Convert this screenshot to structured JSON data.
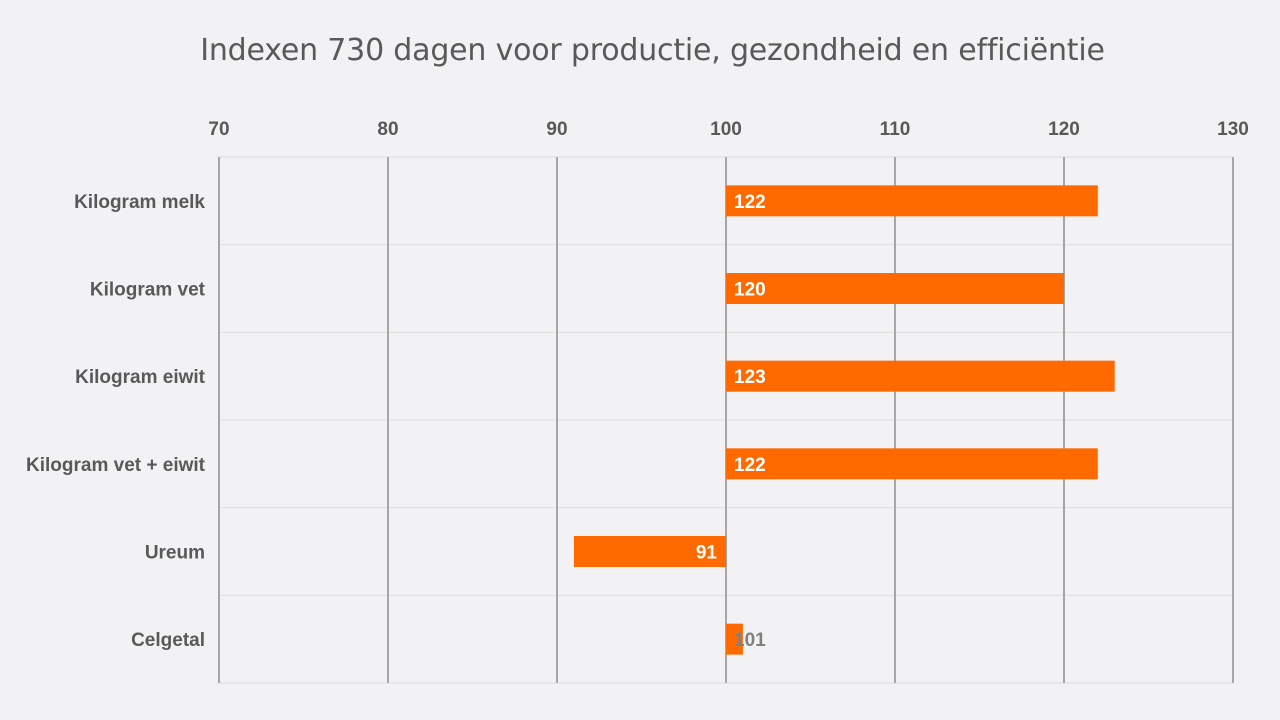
{
  "chart_data": {
    "type": "bar",
    "orientation": "horizontal",
    "title": "Indexen 730 dagen voor productie, gezondheid en efficiëntie",
    "xlabel": "",
    "ylabel": "",
    "xlim": [
      70,
      130
    ],
    "baseline": 100,
    "x_axis_position": "top",
    "x_ticks": [
      70,
      80,
      90,
      100,
      110,
      120,
      130
    ],
    "grid": true,
    "legend": "none",
    "categories": [
      "Kilogram melk",
      "Kilogram vet",
      "Kilogram eiwit",
      "Kilogram vet + eiwit",
      "Ureum",
      "Celgetal"
    ],
    "values": [
      122,
      120,
      123,
      122,
      91,
      101
    ],
    "data_labels": [
      "122",
      "120",
      "123",
      "122",
      "91",
      "101"
    ],
    "colors": {
      "bar": "#ff6a00",
      "label_inside": "#ffffff",
      "label_outside": "#7f7f7f",
      "major_grid": "#a6a6a6",
      "minor_grid": "#dcdcdc",
      "text": "#595959",
      "background": "#f2f1f3"
    }
  }
}
